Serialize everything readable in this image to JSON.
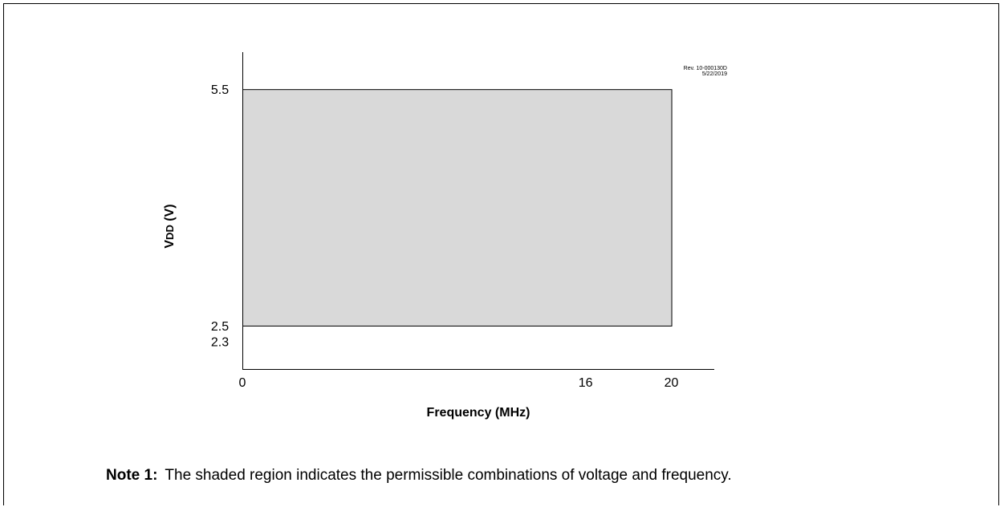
{
  "chart_data": {
    "type": "area",
    "xlabel": "Frequency (MHz)",
    "ylabel": "VDD (V)",
    "ylabel_main": "V",
    "ylabel_sub": "DD",
    "ylabel_unit": " (V)",
    "x_ticks": [
      0,
      16,
      20
    ],
    "y_ticks": [
      2.3,
      2.5,
      5.5
    ],
    "xlim": [
      0,
      22
    ],
    "ylim": [
      1.95,
      5.97
    ],
    "region": {
      "x": [
        0,
        20
      ],
      "y": [
        2.5,
        5.5
      ]
    },
    "fill_color": "#d9d9d9",
    "grid": false,
    "rev_note_line1": "Rev. 10-000130D",
    "rev_note_line2": "5/22/2019"
  },
  "note": {
    "label": "Note 1:",
    "text": "The shaded region indicates the permissible combinations of voltage and frequency."
  }
}
